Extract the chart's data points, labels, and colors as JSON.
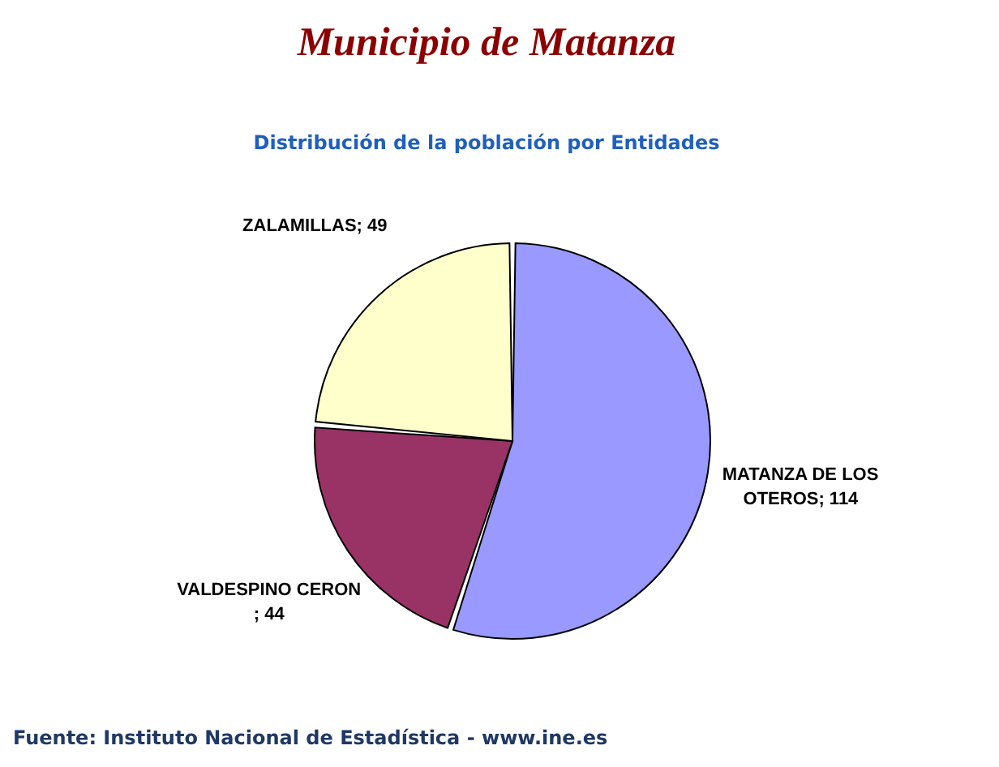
{
  "chart_data": {
    "type": "pie",
    "title": "Municipio de Matanza",
    "subtitle": "Distribución de la población por Entidades",
    "categories": [
      "MATANZA DE LOS OTEROS",
      "VALDESPINO CERON",
      "ZALAMILLAS"
    ],
    "values": [
      114,
      44,
      49
    ],
    "colors": [
      "#9999ff",
      "#993366",
      "#ffffcc"
    ],
    "value_labels": [
      "; 114",
      "; 44",
      "; 49"
    ],
    "legend": false,
    "annotations": [
      "Fuente: Instituto Nacional de Estadística - www.ine.es"
    ]
  }
}
